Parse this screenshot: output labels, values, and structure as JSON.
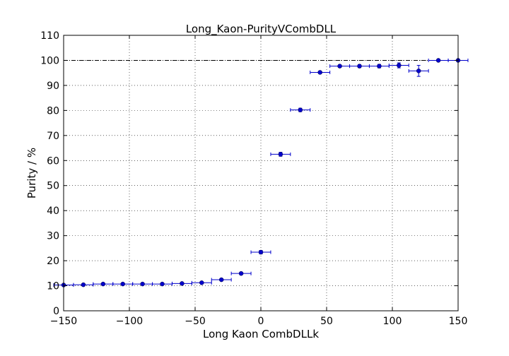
{
  "chart_data": {
    "type": "scatter",
    "title": "Long_Kaon-PurityVCombDLL",
    "xlabel": "Long Kaon CombDLLk",
    "ylabel": "Purity / %",
    "xlim": [
      -150,
      150
    ],
    "ylim": [
      0,
      110
    ],
    "xticks": [
      -150,
      -100,
      -50,
      0,
      50,
      100,
      150
    ],
    "yticks": [
      0,
      10,
      20,
      30,
      40,
      50,
      60,
      70,
      80,
      90,
      100,
      110
    ],
    "xtick_labels": [
      "−150",
      "−100",
      "−50",
      "0",
      "50",
      "100",
      "150"
    ],
    "ytick_labels": [
      "0",
      "10",
      "20",
      "30",
      "40",
      "50",
      "60",
      "70",
      "80",
      "90",
      "100",
      "110"
    ],
    "grid": true,
    "reference_line": {
      "y": 100,
      "style": "dash-dot"
    },
    "marker_color": "#0000cc",
    "series": [
      {
        "x": [
          -150,
          -135,
          -120,
          -105,
          -90,
          -75,
          -60,
          -45,
          -30,
          -15,
          0,
          15,
          30,
          45,
          60,
          75,
          90,
          105,
          120,
          135,
          150
        ],
        "y": [
          10.3,
          10.4,
          10.7,
          10.7,
          10.7,
          10.7,
          10.9,
          11.2,
          12.4,
          14.9,
          23.4,
          62.5,
          80.2,
          95.2,
          97.7,
          97.7,
          97.7,
          98.0,
          95.8,
          100,
          100
        ],
        "xerr": [
          7.5,
          7.5,
          7.5,
          7.5,
          7.5,
          7.5,
          7.5,
          7.5,
          7.5,
          7.5,
          7.5,
          7.5,
          7.5,
          7.5,
          7.5,
          7.5,
          7.5,
          7.5,
          7.5,
          7.5,
          7.5
        ],
        "yerr": [
          0.3,
          0.3,
          0.3,
          0.3,
          0.3,
          0.3,
          0.3,
          0.3,
          0.4,
          0.5,
          0.7,
          0.8,
          0.7,
          0.5,
          0.5,
          0.6,
          0.7,
          1.0,
          2.2,
          0.2,
          0.2
        ]
      }
    ]
  }
}
